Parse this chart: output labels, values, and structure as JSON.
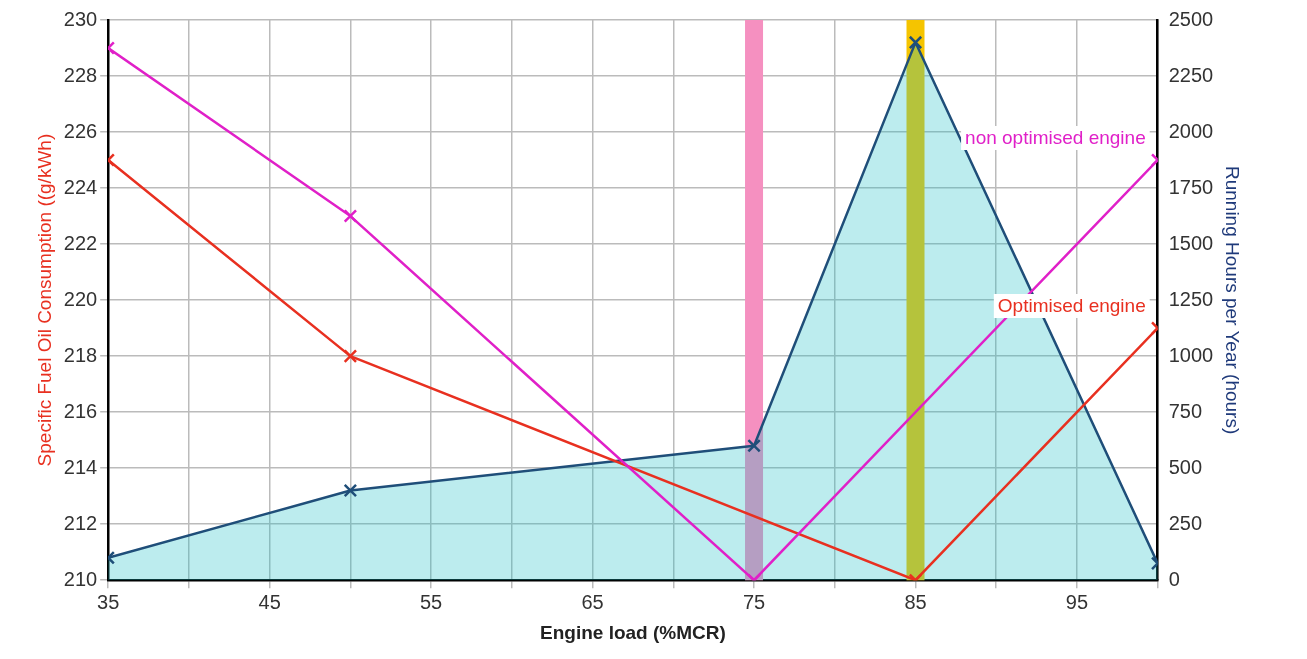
{
  "chart_data": {
    "type": "line",
    "xlabel": "Engine load (%MCR)",
    "ylabel": "Specific Fuel Oil Consumption ((g/kWh)",
    "y2label": "Running Hours per Year (hours)",
    "series": [
      {
        "name": "non optimised engine",
        "color": "#e020c8",
        "marker": "cross",
        "x": [
          35,
          50,
          75,
          100
        ],
        "values": [
          229,
          223,
          210,
          225
        ]
      },
      {
        "name": "Optimised engine",
        "color": "#e83020",
        "marker": "cross",
        "x": [
          35,
          50,
          85,
          100
        ],
        "values": [
          225,
          218,
          210,
          219
        ]
      },
      {
        "type": "area",
        "axis": "y2",
        "color": "#1f4e79",
        "marker": "cross",
        "x": [
          35,
          50,
          75,
          85,
          100
        ],
        "values": [
          100,
          400,
          600,
          2400,
          75
        ]
      }
    ],
    "xlim": [
      35,
      100
    ],
    "xticks": [
      35,
      {
        "value": 40,
        "label": null
      },
      45,
      {
        "value": 50,
        "label": null
      },
      55,
      {
        "value": 60,
        "label": null
      },
      65,
      {
        "value": 70,
        "label": null
      },
      75,
      {
        "value": 80,
        "label": null
      },
      85,
      {
        "value": 90,
        "label": null
      },
      95,
      {
        "value": 100,
        "label": null
      }
    ],
    "ylim": [
      210,
      230
    ],
    "yticks": [
      210,
      212,
      214,
      216,
      218,
      220,
      222,
      224,
      226,
      228,
      230
    ],
    "y2lim": [
      0,
      2500
    ],
    "y2ticks": [
      0,
      250,
      500,
      750,
      1000,
      1250,
      1500,
      1750,
      2000,
      2250,
      2500
    ],
    "ref_lines": [
      {
        "axis": "x",
        "value": 75,
        "color": "#f590c0"
      },
      {
        "axis": "x",
        "value": 85,
        "color": "#f5c400"
      }
    ],
    "grid": true,
    "legend": false
  }
}
